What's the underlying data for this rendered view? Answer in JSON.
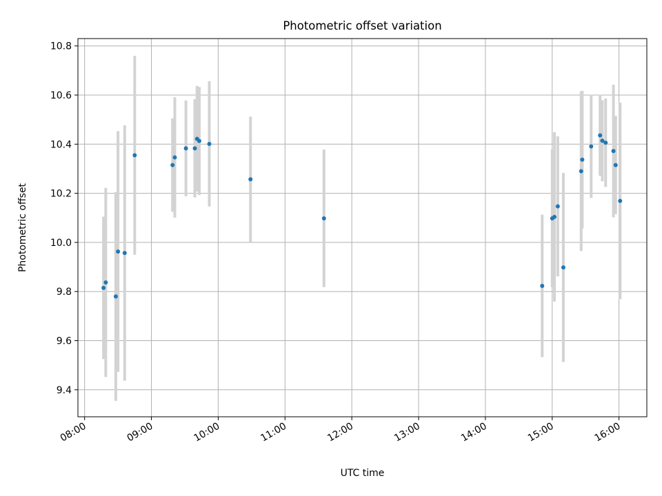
{
  "chart_data": {
    "type": "scatter",
    "title": "Photometric offset variation",
    "xlabel": "UTC time",
    "ylabel": "Photometric offset",
    "x_ticks": [
      "08:00",
      "09:00",
      "10:00",
      "11:00",
      "12:00",
      "13:00",
      "14:00",
      "15:00",
      "16:00"
    ],
    "y_ticks": [
      "9.4",
      "9.6",
      "9.8",
      "10.0",
      "10.2",
      "10.4",
      "10.6",
      "10.8"
    ],
    "xlim": [
      "07:54",
      "16:25"
    ],
    "ylim": [
      9.29,
      10.83
    ],
    "grid": true,
    "marker_color": "#1f77b4",
    "errorbar_color": "#d3d3d3",
    "points": [
      {
        "x": "08:17",
        "y": 9.815,
        "err": 0.29
      },
      {
        "x": "08:19",
        "y": 9.837,
        "err": 0.385
      },
      {
        "x": "08:28",
        "y": 9.78,
        "err": 0.425
      },
      {
        "x": "08:30",
        "y": 9.963,
        "err": 0.49
      },
      {
        "x": "08:36",
        "y": 9.957,
        "err": 0.52
      },
      {
        "x": "08:45",
        "y": 10.355,
        "err": 0.405
      },
      {
        "x": "09:19",
        "y": 10.315,
        "err": 0.19
      },
      {
        "x": "09:21",
        "y": 10.346,
        "err": 0.245
      },
      {
        "x": "09:31",
        "y": 10.383,
        "err": 0.195
      },
      {
        "x": "09:39",
        "y": 10.383,
        "err": 0.2
      },
      {
        "x": "09:41",
        "y": 10.422,
        "err": 0.215
      },
      {
        "x": "09:43",
        "y": 10.413,
        "err": 0.22
      },
      {
        "x": "09:52",
        "y": 10.401,
        "err": 0.255
      },
      {
        "x": "10:29",
        "y": 10.257,
        "err": 0.255
      },
      {
        "x": "11:35",
        "y": 10.098,
        "err": 0.28
      },
      {
        "x": "14:51",
        "y": 9.823,
        "err": 0.29
      },
      {
        "x": "15:00",
        "y": 10.098,
        "err": 0.28
      },
      {
        "x": "15:02",
        "y": 10.104,
        "err": 0.345
      },
      {
        "x": "15:05",
        "y": 10.147,
        "err": 0.285
      },
      {
        "x": "15:10",
        "y": 9.898,
        "err": 0.385
      },
      {
        "x": "15:26",
        "y": 10.29,
        "err": 0.325
      },
      {
        "x": "15:27",
        "y": 10.337,
        "err": 0.28
      },
      {
        "x": "15:35",
        "y": 10.391,
        "err": 0.21
      },
      {
        "x": "15:43",
        "y": 10.436,
        "err": 0.165
      },
      {
        "x": "15:45",
        "y": 10.414,
        "err": 0.165
      },
      {
        "x": "15:48",
        "y": 10.406,
        "err": 0.18
      },
      {
        "x": "15:55",
        "y": 10.372,
        "err": 0.27
      },
      {
        "x": "15:57",
        "y": 10.315,
        "err": 0.2
      },
      {
        "x": "16:01",
        "y": 10.169,
        "err": 0.4
      }
    ]
  }
}
